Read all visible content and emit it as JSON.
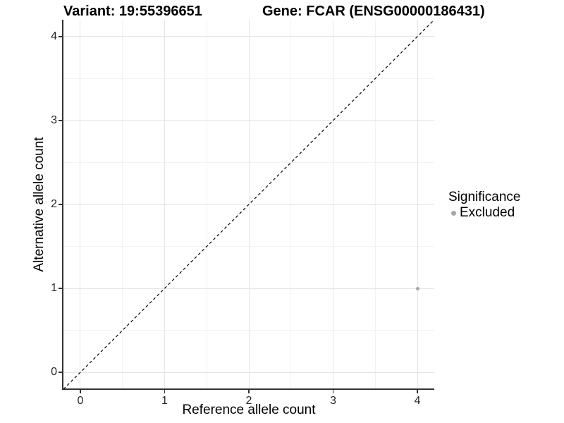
{
  "chart_data": {
    "type": "scatter",
    "title_left": "Variant: 19:55396651",
    "title_right": "Gene: FCAR (ENSG00000186431)",
    "xlabel": "Reference allele count",
    "ylabel": "Alternative allele count",
    "xlim": [
      -0.2,
      4.2
    ],
    "ylim": [
      -0.2,
      4.2
    ],
    "x_ticks": [
      0,
      1,
      2,
      3,
      4
    ],
    "y_ticks": [
      0,
      1,
      2,
      3,
      4
    ],
    "x_tick_labels": [
      "0",
      "1",
      "2",
      "3",
      "4"
    ],
    "y_tick_labels": [
      "0",
      "1",
      "2",
      "3",
      "4"
    ],
    "x_minor_ticks": [
      0.5,
      1.5,
      2.5,
      3.5
    ],
    "y_minor_ticks": [
      0.5,
      1.5,
      2.5,
      3.5
    ],
    "grid": true,
    "reference_line": {
      "name": "identity-line",
      "style": "dashed",
      "from": [
        -0.2,
        -0.2
      ],
      "to": [
        4.2,
        4.2
      ],
      "color": "#000000"
    },
    "series": [
      {
        "name": "Excluded",
        "color": "#a8a8a8",
        "points": [
          {
            "x": 4,
            "y": 1
          }
        ]
      }
    ],
    "legend": {
      "title": "Significance",
      "position": "right",
      "entries": [
        {
          "label": "Excluded",
          "color": "#a8a8a8"
        }
      ]
    },
    "colors": {
      "background": "#ffffff",
      "axis": "#333333",
      "grid_major": "#e4e4e4",
      "grid_minor": "#f2f2f2",
      "text": "#000000",
      "tick_text": "#262626",
      "point": "#a8a8a8"
    }
  }
}
